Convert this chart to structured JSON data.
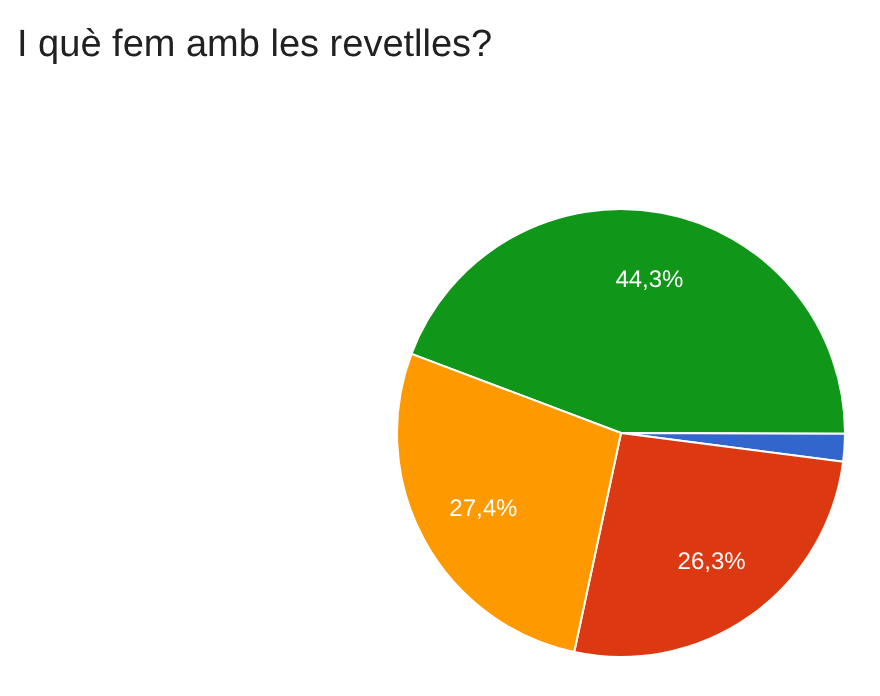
{
  "chart_data": {
    "type": "pie",
    "title": "I què fem amb les revetlles?",
    "categories": [
      null,
      null,
      null,
      null
    ],
    "values": [
      44.3,
      2.0,
      26.3,
      27.4
    ],
    "colors": [
      "#109618",
      "#3366cc",
      "#dc3912",
      "#ff9900"
    ],
    "value_labels": [
      "44,3%",
      null,
      "26,3%",
      "27,4%"
    ]
  }
}
